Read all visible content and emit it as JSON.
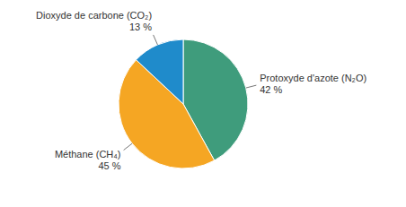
{
  "chart_data": {
    "type": "pie",
    "categories": [
      "Protoxyde d'azote (N₂O)",
      "Méthane (CH₄)",
      "Dioxyde de carbone (CO₂)"
    ],
    "values": [
      42,
      45,
      13
    ],
    "value_labels": [
      "42 %",
      "45 %",
      "13 %"
    ],
    "colors": [
      "#3f9c7c",
      "#f5a623",
      "#1f8bcb"
    ],
    "data_labels": true,
    "legend": false
  }
}
